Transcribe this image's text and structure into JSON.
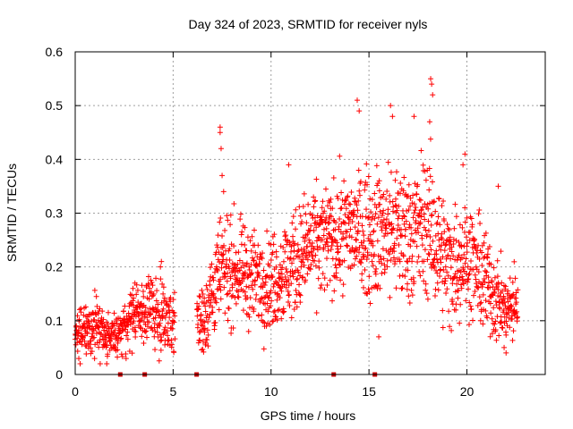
{
  "chart_data": {
    "type": "scatter",
    "title": "Day 324 of 2023, SRMTID for receiver nyls",
    "xlabel": "GPS time / hours",
    "ylabel": "SRMTID / TECUs",
    "xlim": [
      0,
      24
    ],
    "ylim": [
      0,
      0.6
    ],
    "x_ticks": [
      0,
      5,
      10,
      15,
      20
    ],
    "x_tick_labels": [
      "0",
      "5",
      "10",
      "15",
      "20"
    ],
    "y_ticks": [
      0,
      0.1,
      0.2,
      0.3,
      0.4,
      0.5,
      0.6
    ],
    "y_tick_labels": [
      "0",
      "0.1",
      "0.2",
      "0.3",
      "0.4",
      "0.5",
      "0.6"
    ],
    "grid": true,
    "marker": "+",
    "color": "#ff0000",
    "marker_color_dark": "#cc0000",
    "series": [
      {
        "name": "SRMTID",
        "envelope": [
          {
            "x": 0.0,
            "mean": 0.07,
            "spread": 0.03
          },
          {
            "x": 1.0,
            "mean": 0.085,
            "spread": 0.04
          },
          {
            "x": 2.0,
            "mean": 0.065,
            "spread": 0.03
          },
          {
            "x": 3.0,
            "mean": 0.11,
            "spread": 0.035
          },
          {
            "x": 4.0,
            "mean": 0.12,
            "spread": 0.05
          },
          {
            "x": 5.0,
            "mean": 0.1,
            "spread": 0.04
          },
          {
            "x": 6.5,
            "mean": 0.1,
            "spread": 0.05
          },
          {
            "x": 7.5,
            "mean": 0.2,
            "spread": 0.07
          },
          {
            "x": 8.5,
            "mean": 0.19,
            "spread": 0.06
          },
          {
            "x": 10.0,
            "mean": 0.17,
            "spread": 0.06
          },
          {
            "x": 11.0,
            "mean": 0.2,
            "spread": 0.07
          },
          {
            "x": 12.0,
            "mean": 0.24,
            "spread": 0.07
          },
          {
            "x": 13.0,
            "mean": 0.25,
            "spread": 0.07
          },
          {
            "x": 14.0,
            "mean": 0.27,
            "spread": 0.07
          },
          {
            "x": 15.0,
            "mean": 0.26,
            "spread": 0.08
          },
          {
            "x": 16.0,
            "mean": 0.27,
            "spread": 0.09
          },
          {
            "x": 17.0,
            "mean": 0.26,
            "spread": 0.09
          },
          {
            "x": 18.0,
            "mean": 0.28,
            "spread": 0.09
          },
          {
            "x": 19.0,
            "mean": 0.2,
            "spread": 0.08
          },
          {
            "x": 20.0,
            "mean": 0.22,
            "spread": 0.07
          },
          {
            "x": 21.0,
            "mean": 0.17,
            "spread": 0.07
          },
          {
            "x": 22.0,
            "mean": 0.12,
            "spread": 0.04
          },
          {
            "x": 22.6,
            "mean": 0.13,
            "spread": 0.05
          }
        ],
        "gaps": [
          [
            5.1,
            6.2
          ]
        ],
        "outliers": [
          {
            "x": 7.4,
            "y": 0.46
          },
          {
            "x": 7.4,
            "y": 0.45
          },
          {
            "x": 7.45,
            "y": 0.42
          },
          {
            "x": 7.5,
            "y": 0.37
          },
          {
            "x": 14.4,
            "y": 0.51
          },
          {
            "x": 14.5,
            "y": 0.49
          },
          {
            "x": 16.1,
            "y": 0.5
          },
          {
            "x": 16.2,
            "y": 0.48
          },
          {
            "x": 17.3,
            "y": 0.48
          },
          {
            "x": 18.15,
            "y": 0.55
          },
          {
            "x": 18.2,
            "y": 0.54
          },
          {
            "x": 18.25,
            "y": 0.52
          },
          {
            "x": 18.1,
            "y": 0.47
          },
          {
            "x": 19.8,
            "y": 0.39
          },
          {
            "x": 19.9,
            "y": 0.41
          },
          {
            "x": 15.5,
            "y": 0.07
          },
          {
            "x": 21.6,
            "y": 0.35
          },
          {
            "x": 10.9,
            "y": 0.39
          },
          {
            "x": 4.35,
            "y": 0.2
          },
          {
            "x": 4.4,
            "y": 0.21
          },
          {
            "x": 2.95,
            "y": 0.16
          },
          {
            "x": 3.05,
            "y": 0.17
          },
          {
            "x": 21.9,
            "y": 0.05
          },
          {
            "x": 22.0,
            "y": 0.04
          }
        ]
      }
    ],
    "zero_markers_x": [
      2.3,
      3.55,
      6.2,
      13.2,
      15.3
    ]
  }
}
